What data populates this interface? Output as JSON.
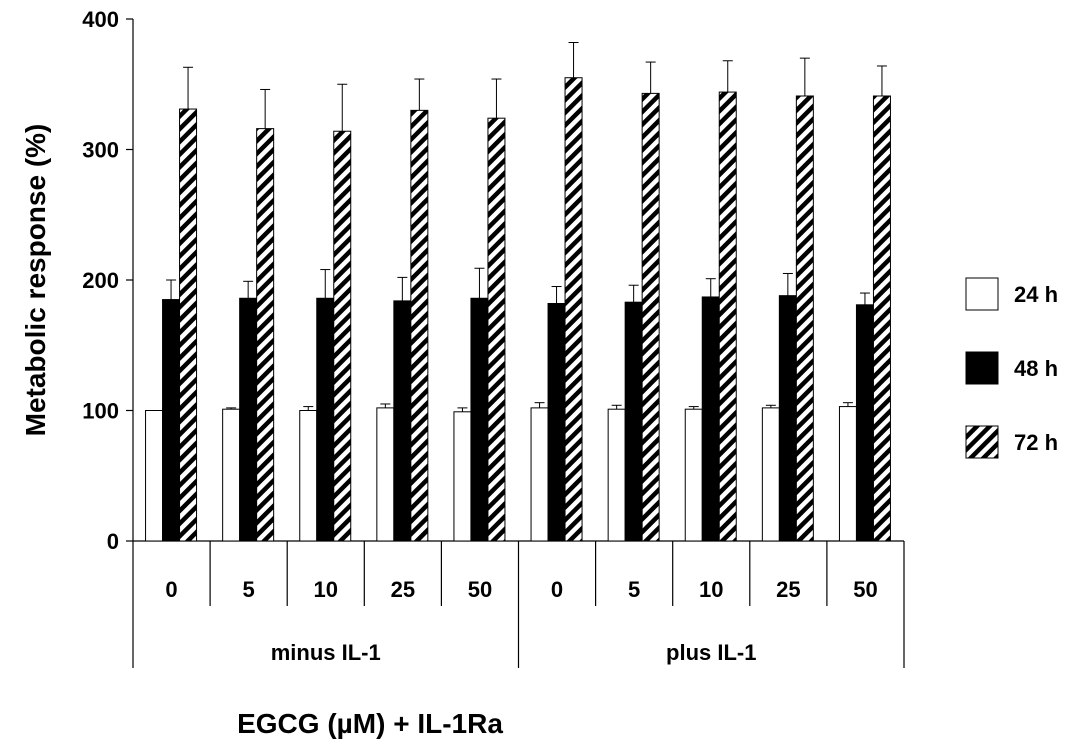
{
  "chart_data": {
    "type": "bar",
    "ylabel": "Metabolic response (%)",
    "xlabel": "EGCG (µM) + IL-1Ra",
    "ylim": [
      0,
      400
    ],
    "yticks": [
      0,
      100,
      200,
      300,
      400
    ],
    "groups": [
      "minus IL-1",
      "plus IL-1"
    ],
    "categories": [
      "0",
      "5",
      "10",
      "25",
      "50",
      "0",
      "5",
      "10",
      "25",
      "50"
    ],
    "legend_position": "right",
    "series": [
      {
        "name": "24 h",
        "fill": "white",
        "values": [
          100,
          101,
          100,
          102,
          99,
          102,
          101,
          101,
          102,
          103
        ],
        "errors": [
          0,
          1,
          3,
          3,
          3,
          4,
          3,
          2,
          2,
          3
        ]
      },
      {
        "name": "48 h",
        "fill": "black",
        "values": [
          185,
          186,
          186,
          184,
          186,
          182,
          183,
          187,
          188,
          181
        ],
        "errors": [
          15,
          13,
          22,
          18,
          23,
          13,
          13,
          14,
          17,
          9
        ]
      },
      {
        "name": "72 h",
        "fill": "hatched",
        "values": [
          331,
          316,
          314,
          330,
          324,
          355,
          343,
          344,
          341,
          341
        ],
        "errors": [
          32,
          30,
          36,
          24,
          30,
          27,
          24,
          24,
          29,
          23
        ]
      }
    ],
    "colors": {
      "24 h": "#ffffff",
      "48 h": "#000000",
      "72 h": "#000000"
    }
  }
}
